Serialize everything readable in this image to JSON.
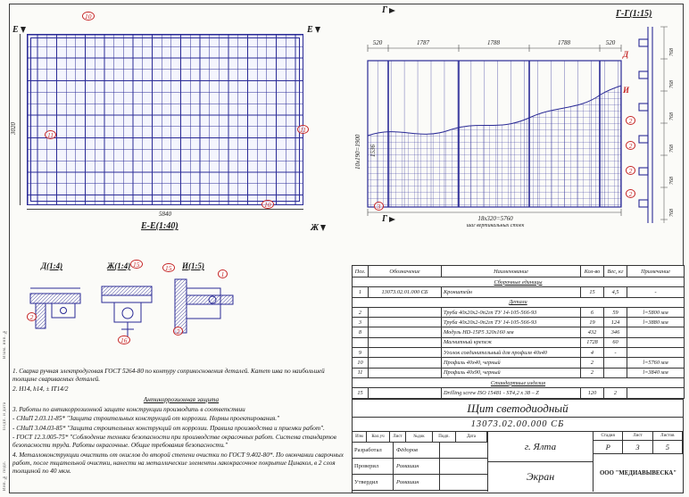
{
  "palette": {
    "line": "#2a2a96",
    "callout": "#c62828",
    "text": "#1a1a1a"
  },
  "frame": {
    "stamps": [
      "Инв. № подл.",
      "Подп. и дата",
      "Взам. инв. №"
    ]
  },
  "views": {
    "front": {
      "caption": "Е-Е(1:40)",
      "marker": "Е",
      "zh_marker": "Ж",
      "dim_width": "5840",
      "dim_height": "3020",
      "callouts": [
        "10",
        "11",
        "11",
        "10"
      ]
    },
    "side": {
      "marker": "Г",
      "dims_top": [
        "520",
        "1787",
        "1788",
        "1788",
        "520"
      ],
      "dim_left_a": "10х190=1900",
      "dim_left_b": "1536",
      "dim_bottom": "18х320=5760",
      "dim_bottom_note": "шаг вертикальных стоек",
      "callout": "3"
    },
    "section_gg": {
      "title": "Г-Г(1:15)",
      "label_d": "Д",
      "label_i": "И",
      "callouts": [
        "2",
        "2",
        "2",
        "2"
      ],
      "dims": [
        "768",
        "768",
        "768",
        "768",
        "768",
        "768"
      ]
    },
    "details": [
      {
        "title": "Д(1:4)",
        "callouts": [
          "2"
        ]
      },
      {
        "title": "Ж(1:4)",
        "callouts": [
          "15",
          "16"
        ]
      },
      {
        "title": "И(1:5)",
        "callouts": [
          "15",
          "1",
          "2"
        ]
      }
    ]
  },
  "notes": [
    {
      "text": "1. Сварка ручная электродуговая ГОСТ 5264-80 по контуру соприкосновения деталей. Катет шва  по  наибольшей толщине свариваемых деталей.",
      "style": ""
    },
    {
      "text": "2. Н14, h14, ± IT14/2",
      "style": ""
    },
    {
      "text": "Антикоррозионная защита",
      "style": "heading"
    },
    {
      "text": "3. Работы по антикоррозионной защите конструкции производить в соответствии",
      "style": ""
    },
    {
      "text": "- СНиП 2.03.11-85* \"Защита строительных конструкций от коррозии. Нормы проектирования.\"",
      "style": ""
    },
    {
      "text": "- СНиП 3.04.03-85* \"Защита строительных конструкций от коррозии. Правила производства и приемки работ\".",
      "style": ""
    },
    {
      "text": "- ГОСТ 12.3.005-75* \"Соблюдение техники безопасности при производстве окрасочных работ. Система стандартов безопасности труда. Работы окрасочные. Общие требования безопасности.\"",
      "style": ""
    },
    {
      "text": "4. Металлоконструкции очистить от окислов до второй степени очистки по ГОСТ 9.402-80*. По окончании сварочных работ, после тщательной очистки, нанести на металлические элементы лакокрасочное покрытие Цинакол, в 2 слоя толщиной по 40 мкм.",
      "style": ""
    }
  ],
  "spec_table": {
    "headers": [
      "Поз.",
      "Обозначение",
      "Наименование",
      "Кол-во",
      "Вес, кг",
      "Примечание"
    ],
    "rows": [
      {
        "section": "Сборочные единицы"
      },
      {
        "pos": "1",
        "des": "13073.02.01.000 СБ",
        "name": "Кронштейн",
        "qty": "15",
        "wt": "4,5",
        "note": "-"
      },
      {
        "section": "Детали"
      },
      {
        "pos": "2",
        "des": "",
        "name": "Труба 40х20х2-0п2гп ТУ 14-105-566-93",
        "qty": "6",
        "wt": "59",
        "note": "l=5800 мм"
      },
      {
        "pos": "3",
        "des": "",
        "name": "Труба 40х20х2-0п2гп ТУ 14-105-566-93",
        "qty": "19",
        "wt": "124",
        "note": "l=3880 мм"
      },
      {
        "pos": "8",
        "des": "",
        "name": "Модуль HD-15P5 320х160 мм",
        "qty": "432",
        "wt": "346",
        "note": ""
      },
      {
        "pos": "",
        "des": "",
        "name": "Магнитный крепеж",
        "qty": "1728",
        "wt": "60",
        "note": ""
      },
      {
        "pos": "9",
        "des": "",
        "name": "Уголок соединительный для профиля 40х40",
        "qty": "4",
        "wt": "-",
        "note": ""
      },
      {
        "pos": "10",
        "des": "",
        "name": "Профиль 40х40, черный",
        "qty": "2",
        "wt": "",
        "note": "l=5760 мм"
      },
      {
        "pos": "11",
        "des": "",
        "name": "Профиль 40х90, черный",
        "qty": "2",
        "wt": "",
        "note": "l=3840 мм"
      },
      {
        "section": "Стандартные изделия"
      },
      {
        "pos": "15",
        "des": "",
        "name": "Drilling screw  ISO 15481 - ST4,2 х 38 – Z",
        "qty": "120",
        "wt": "2",
        "note": ""
      }
    ]
  },
  "title_block": {
    "doc_title": "Щит светодиодный",
    "doc_number": "13073.02.00.000 СБ",
    "sign_header": [
      "Изм",
      "Кол.уч",
      "Лист",
      "№док",
      "Подп.",
      "Дата"
    ],
    "sign_rows": [
      {
        "role": "Разработал",
        "name": "Фёдоров"
      },
      {
        "role": "Проверил",
        "name": "Ромашин"
      },
      {
        "role": "Утвердил",
        "name": "Ромашин"
      }
    ],
    "city": "г. Ялта",
    "sheet_name": "Экран",
    "stage_headers": [
      "Стадия",
      "Лист",
      "Листов"
    ],
    "stage_values": [
      "Р",
      "3",
      "5"
    ],
    "company": "ООО \"МЕДИАВЫВЕСКА\""
  }
}
